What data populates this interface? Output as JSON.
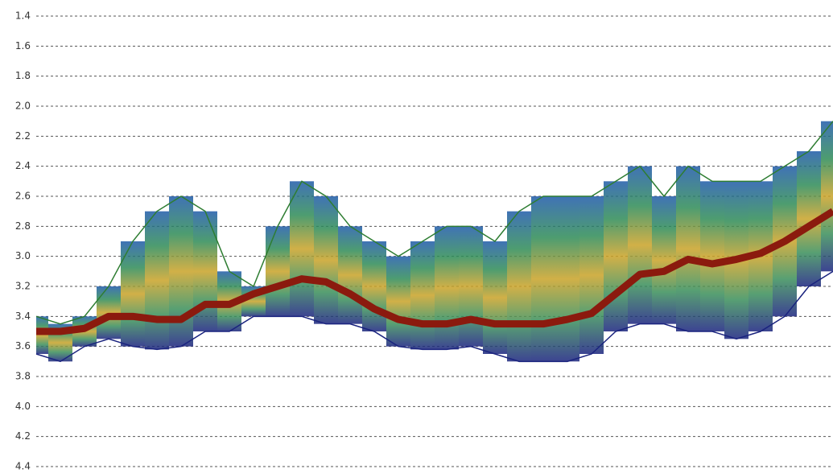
{
  "chart_data": {
    "type": "echogram",
    "categories": [
      null,
      null,
      null,
      null,
      null,
      null,
      null,
      null,
      null,
      null,
      null,
      null,
      null,
      null,
      null,
      null,
      null,
      null,
      null,
      null,
      null,
      null,
      null,
      null,
      null,
      null,
      null,
      null,
      null,
      null,
      null,
      null,
      null,
      null
    ],
    "series": [
      {
        "color": "#2e7d32",
        "values": [
          3.4,
          3.45,
          3.4,
          3.2,
          2.9,
          2.7,
          2.6,
          2.7,
          3.1,
          3.2,
          2.8,
          2.5,
          2.6,
          2.8,
          2.9,
          3.0,
          2.9,
          2.8,
          2.8,
          2.9,
          2.7,
          2.6,
          2.6,
          2.6,
          2.5,
          2.4,
          2.6,
          2.4,
          2.5,
          2.5,
          2.5,
          2.4,
          2.3,
          2.1
        ]
      },
      {
        "color": "#8b1a0e",
        "values": [
          3.5,
          3.5,
          3.48,
          3.4,
          3.4,
          3.42,
          3.42,
          3.32,
          3.32,
          3.25,
          3.2,
          3.15,
          3.17,
          3.25,
          3.35,
          3.42,
          3.45,
          3.45,
          3.42,
          3.45,
          3.45,
          3.45,
          3.42,
          3.38,
          3.25,
          3.12,
          3.1,
          3.02,
          3.05,
          3.02,
          2.98,
          2.9,
          2.8,
          2.7
        ]
      },
      {
        "color": "#1a237e",
        "values": [
          3.65,
          3.7,
          3.6,
          3.55,
          3.6,
          3.62,
          3.6,
          3.5,
          3.5,
          3.4,
          3.4,
          3.4,
          3.45,
          3.45,
          3.5,
          3.6,
          3.62,
          3.62,
          3.6,
          3.65,
          3.7,
          3.7,
          3.7,
          3.65,
          3.5,
          3.45,
          3.45,
          3.5,
          3.5,
          3.55,
          3.5,
          3.4,
          3.2,
          3.1
        ]
      }
    ],
    "ylim": [
      4.4,
      1.4
    ],
    "yticks": [
      1.4,
      1.6,
      1.8,
      {
        "value": 2.0,
        "label": "2.0"
      },
      2.2,
      2.4,
      2.6,
      2.8,
      {
        "value": 3.0,
        "label": "3.0"
      },
      3.2,
      3.4,
      3.6,
      3.8,
      {
        "value": 4.0,
        "label": "4.0"
      },
      4.2,
      4.4
    ],
    "grid": true
  }
}
